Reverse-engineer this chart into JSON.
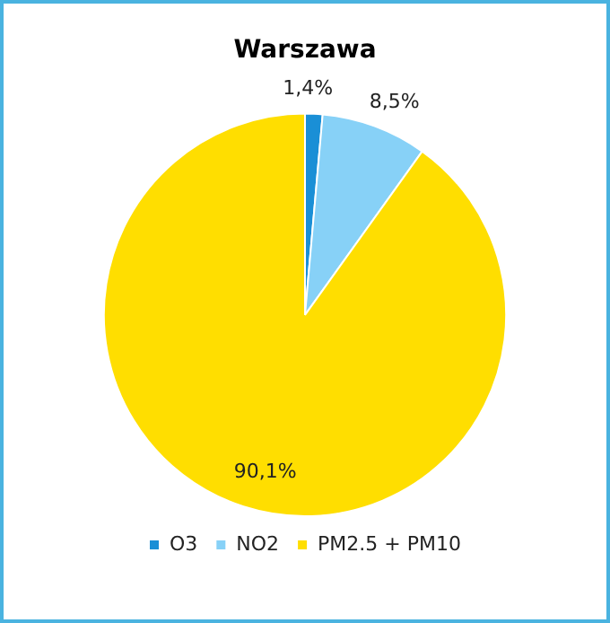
{
  "chart_data": {
    "type": "pie",
    "title": "Warszawa",
    "categories": [
      "O3",
      "NO2",
      "PM2.5 + PM10"
    ],
    "values": [
      1.4,
      8.5,
      90.1
    ],
    "colors": [
      "#1a8fd6",
      "#87d1f7",
      "#ffde00"
    ],
    "value_labels": [
      "1,4%",
      "8,5%",
      "90,1%"
    ],
    "legend": "bottom"
  }
}
